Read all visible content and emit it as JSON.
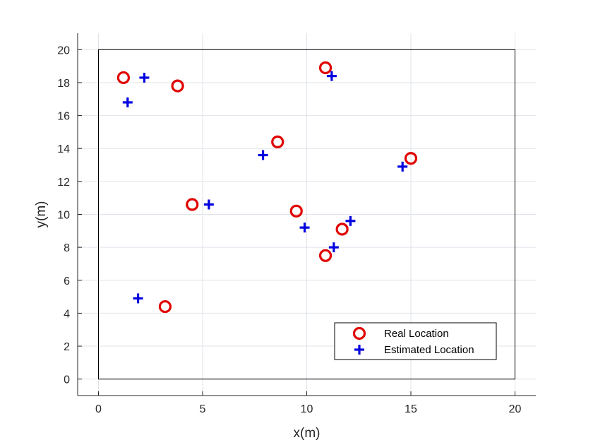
{
  "chart_data": {
    "type": "scatter",
    "xlabel": "x(m)",
    "ylabel": "y(m)",
    "xlim": [
      -1,
      21
    ],
    "ylim": [
      -1,
      21
    ],
    "xticks": [
      0,
      5,
      10,
      15,
      20
    ],
    "yticks": [
      0,
      2,
      4,
      6,
      8,
      10,
      12,
      14,
      16,
      18,
      20
    ],
    "grid": true,
    "legend_position": "bottom-right",
    "region": {
      "x": [
        0,
        20
      ],
      "y": [
        0,
        20
      ]
    },
    "series": [
      {
        "name": "Real Location",
        "marker": "circle",
        "color": "#e00000",
        "points": [
          {
            "x": 1.2,
            "y": 18.3
          },
          {
            "x": 3.8,
            "y": 17.8
          },
          {
            "x": 10.9,
            "y": 18.9
          },
          {
            "x": 8.6,
            "y": 14.4
          },
          {
            "x": 15.0,
            "y": 13.4
          },
          {
            "x": 4.5,
            "y": 10.6
          },
          {
            "x": 9.5,
            "y": 10.2
          },
          {
            "x": 11.7,
            "y": 9.1
          },
          {
            "x": 10.9,
            "y": 7.5
          },
          {
            "x": 3.2,
            "y": 4.4
          }
        ]
      },
      {
        "name": "Estimated Location",
        "marker": "plus",
        "color": "#0000e0",
        "points": [
          {
            "x": 2.2,
            "y": 18.3
          },
          {
            "x": 1.4,
            "y": 16.8
          },
          {
            "x": 11.2,
            "y": 18.4
          },
          {
            "x": 7.9,
            "y": 13.6
          },
          {
            "x": 14.6,
            "y": 12.9
          },
          {
            "x": 5.3,
            "y": 10.6
          },
          {
            "x": 9.9,
            "y": 9.2
          },
          {
            "x": 12.1,
            "y": 9.6
          },
          {
            "x": 11.3,
            "y": 8.0
          },
          {
            "x": 1.9,
            "y": 4.9
          }
        ]
      }
    ]
  }
}
